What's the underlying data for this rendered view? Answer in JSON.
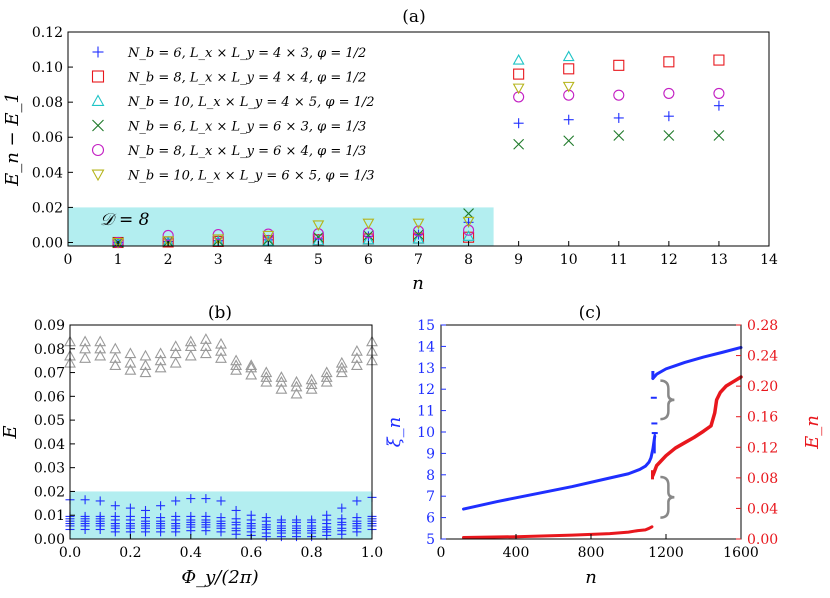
{
  "colors": {
    "blue": "#1f2fff",
    "red": "#e8171d",
    "cyan": "#1fc4c6",
    "green": "#1f7a2a",
    "magenta": "#c31fc3",
    "olive": "#b5b41a",
    "gray": "#9a9a9a",
    "band": "#b3eef0"
  },
  "chart_data": [
    {
      "id": "a",
      "title": "(a)",
      "type": "scatter",
      "xlabel": "n",
      "ylabel": "E_n − E_1",
      "xlim": [
        0,
        14
      ],
      "ylim": [
        -0.002,
        0.12
      ],
      "xticks": [
        "0",
        "1",
        "2",
        "3",
        "4",
        "5",
        "6",
        "7",
        "8",
        "9",
        "10",
        "11",
        "12",
        "13",
        "14"
      ],
      "yticks": [
        "0.00",
        "0.02",
        "0.04",
        "0.06",
        "0.08",
        "0.10",
        "0.12"
      ],
      "band": {
        "x": [
          0,
          8.5
        ],
        "y": [
          -0.002,
          0.02
        ],
        "label": "𝒟 = 8"
      },
      "series": [
        {
          "name": "N_b = 6, L_x × L_y = 4 × 3, φ = 1/2",
          "marker": "plus",
          "color": "blue",
          "x": [
            1,
            2,
            3,
            4,
            5,
            6,
            7,
            8,
            9,
            10,
            11,
            12,
            13
          ],
          "y": [
            0.0,
            0.0005,
            0.001,
            0.0015,
            0.002,
            0.0035,
            0.0045,
            0.0115,
            0.068,
            0.07,
            0.071,
            0.072,
            0.078
          ]
        },
        {
          "name": "N_b = 8, L_x × L_y = 4 × 4, φ = 1/2",
          "marker": "square",
          "color": "red",
          "x": [
            1,
            2,
            3,
            4,
            5,
            6,
            7,
            8,
            9,
            10,
            11,
            12,
            13
          ],
          "y": [
            0.0,
            0.0003,
            0.0006,
            0.001,
            0.0015,
            0.002,
            0.0025,
            0.003,
            0.096,
            0.099,
            0.101,
            0.103,
            0.104
          ]
        },
        {
          "name": "N_b = 10, L_x × L_y = 4 × 5, φ = 1/2",
          "marker": "triangle",
          "color": "cyan",
          "x": [
            1,
            2,
            3,
            4,
            5,
            6,
            7,
            8,
            9,
            10
          ],
          "y": [
            0.0,
            0.0003,
            0.0005,
            0.0008,
            0.001,
            0.0015,
            0.002,
            0.0035,
            0.104,
            0.106
          ]
        },
        {
          "name": "N_b = 6, L_x × L_y = 6 × 3, φ = 1/3",
          "marker": "cross",
          "color": "green",
          "x": [
            1,
            2,
            3,
            4,
            5,
            6,
            7,
            8,
            9,
            10,
            11,
            12,
            13
          ],
          "y": [
            0.0,
            0.0005,
            0.001,
            0.0015,
            0.003,
            0.004,
            0.0045,
            0.0165,
            0.056,
            0.058,
            0.061,
            0.061,
            0.061
          ]
        },
        {
          "name": "N_b = 8, L_x × L_y = 6 × 4, φ = 1/3",
          "marker": "circle",
          "color": "magenta",
          "x": [
            1,
            2,
            3,
            4,
            5,
            6,
            7,
            8,
            9,
            10,
            11,
            12,
            13
          ],
          "y": [
            0.0,
            0.004,
            0.0045,
            0.0048,
            0.005,
            0.0055,
            0.0065,
            0.007,
            0.083,
            0.084,
            0.084,
            0.085,
            0.085
          ]
        },
        {
          "name": "N_b = 10, L_x × L_y = 6 × 5, φ = 1/3",
          "marker": "tridown",
          "color": "olive",
          "x": [
            1,
            2,
            3,
            4,
            5,
            6,
            7,
            8,
            9,
            10
          ],
          "y": [
            0.0,
            0.001,
            0.002,
            0.004,
            0.01,
            0.011,
            0.011,
            0.012,
            0.088,
            0.089
          ]
        }
      ]
    },
    {
      "id": "b",
      "title": "(b)",
      "type": "scatter",
      "xlabel": "Φ_y/(2π)",
      "ylabel": "E",
      "xlim": [
        0,
        1
      ],
      "ylim": [
        0,
        0.09
      ],
      "xticks": [
        "0.0",
        "0.2",
        "0.4",
        "0.6",
        "0.8",
        "1.0"
      ],
      "yticks": [
        "0.00",
        "0.01",
        "0.02",
        "0.03",
        "0.04",
        "0.05",
        "0.06",
        "0.07",
        "0.08",
        "0.09"
      ],
      "band": {
        "x": [
          0,
          1
        ],
        "y": [
          0,
          0.02
        ]
      },
      "x": [
        0.0,
        0.05,
        0.1,
        0.15,
        0.2,
        0.25,
        0.3,
        0.35,
        0.4,
        0.45,
        0.5,
        0.55,
        0.6,
        0.65,
        0.7,
        0.75,
        0.8,
        0.85,
        0.9,
        0.95,
        1.0
      ],
      "low_series": {
        "marker": "plus",
        "color": "blue",
        "values": [
          [
            0.004,
            0.0055,
            0.0065,
            0.0075,
            0.0085,
            0.0095,
            0.0165
          ],
          [
            0.004,
            0.0055,
            0.0065,
            0.0075,
            0.0085,
            0.0095,
            0.0165
          ],
          [
            0.004,
            0.0055,
            0.0065,
            0.0075,
            0.0085,
            0.0095,
            0.016
          ],
          [
            0.003,
            0.0045,
            0.0055,
            0.0065,
            0.008,
            0.0095,
            0.014
          ],
          [
            0.003,
            0.0045,
            0.0055,
            0.0065,
            0.008,
            0.0095,
            0.013
          ],
          [
            0.003,
            0.0045,
            0.0055,
            0.0065,
            0.0075,
            0.009,
            0.012
          ],
          [
            0.003,
            0.0045,
            0.0055,
            0.0065,
            0.0075,
            0.009,
            0.014
          ],
          [
            0.003,
            0.0045,
            0.0055,
            0.0065,
            0.008,
            0.0095,
            0.016
          ],
          [
            0.0035,
            0.005,
            0.006,
            0.007,
            0.008,
            0.0095,
            0.017
          ],
          [
            0.0035,
            0.005,
            0.006,
            0.007,
            0.008,
            0.0095,
            0.017
          ],
          [
            0.003,
            0.0045,
            0.0055,
            0.0065,
            0.0075,
            0.009,
            0.016
          ],
          [
            0.002,
            0.0035,
            0.0045,
            0.006,
            0.007,
            0.0085,
            0.012
          ],
          [
            0.0015,
            0.003,
            0.0045,
            0.0055,
            0.0065,
            0.008,
            0.01
          ],
          [
            0.001,
            0.0025,
            0.004,
            0.005,
            0.006,
            0.0075,
            0.009
          ],
          [
            0.001,
            0.0025,
            0.0035,
            0.0045,
            0.0055,
            0.007,
            0.008
          ],
          [
            0.001,
            0.0025,
            0.0035,
            0.0045,
            0.0055,
            0.007,
            0.008
          ],
          [
            0.001,
            0.0025,
            0.0035,
            0.0045,
            0.0055,
            0.007,
            0.008
          ],
          [
            0.0015,
            0.003,
            0.004,
            0.005,
            0.0065,
            0.008,
            0.01
          ],
          [
            0.002,
            0.0035,
            0.0045,
            0.006,
            0.007,
            0.0085,
            0.013
          ],
          [
            0.003,
            0.0045,
            0.0055,
            0.0065,
            0.0075,
            0.009,
            0.016
          ],
          [
            0.004,
            0.0055,
            0.0065,
            0.0075,
            0.0085,
            0.0095,
            0.0175
          ]
        ]
      },
      "high_series": {
        "marker": "triangle",
        "color": "gray",
        "values": [
          [
            0.074,
            0.077,
            0.083
          ],
          [
            0.076,
            0.08,
            0.083
          ],
          [
            0.077,
            0.08,
            0.083
          ],
          [
            0.073,
            0.076,
            0.08
          ],
          [
            0.071,
            0.074,
            0.078
          ],
          [
            0.07,
            0.073,
            0.077
          ],
          [
            0.072,
            0.075,
            0.078
          ],
          [
            0.074,
            0.078,
            0.081
          ],
          [
            0.077,
            0.081,
            0.083
          ],
          [
            0.078,
            0.081,
            0.084
          ],
          [
            0.076,
            0.079,
            0.082
          ],
          [
            0.071,
            0.073,
            0.075
          ],
          [
            0.069,
            0.072,
            0.073
          ],
          [
            0.066,
            0.068,
            0.07
          ],
          [
            0.063,
            0.066,
            0.068
          ],
          [
            0.061,
            0.064,
            0.066
          ],
          [
            0.063,
            0.065,
            0.067
          ],
          [
            0.066,
            0.068,
            0.07
          ],
          [
            0.07,
            0.072,
            0.074
          ],
          [
            0.073,
            0.076,
            0.079
          ],
          [
            0.075,
            0.079,
            0.083
          ]
        ]
      }
    },
    {
      "id": "c",
      "title": "(c)",
      "type": "line",
      "xlabel": "n",
      "ylabel_left": "ξ_n",
      "ylabel_right": "E_n",
      "xlim": [
        0,
        1600
      ],
      "ylim_left": [
        5,
        15
      ],
      "ylim_right": [
        0,
        0.28
      ],
      "xticks": [
        "0",
        "400",
        "800",
        "1200",
        "1600"
      ],
      "yticks_left": [
        "5",
        "6",
        "7",
        "8",
        "9",
        "10",
        "11",
        "12",
        "13",
        "14",
        "15"
      ],
      "yticks_right": [
        "0.00",
        "0.04",
        "0.08",
        "0.12",
        "0.16",
        "0.20",
        "0.24",
        "0.28"
      ],
      "xi_series": {
        "name": "ξ_n",
        "color": "blue",
        "axis": "left",
        "x": [
          120,
          300,
          500,
          700,
          900,
          1000,
          1060,
          1090,
          1110,
          1120,
          1130,
          1140
        ],
        "y": [
          6.4,
          6.75,
          7.1,
          7.45,
          7.85,
          8.05,
          8.25,
          8.4,
          8.6,
          8.8,
          9.2,
          9.8
        ],
        "upper_x": [
          1130,
          1150,
          1200,
          1250,
          1300,
          1400,
          1500,
          1600
        ],
        "upper_y": [
          12.5,
          12.7,
          12.95,
          13.1,
          13.25,
          13.5,
          13.72,
          13.95
        ],
        "isolated": [
          [
            1135,
            11.6
          ],
          [
            1138,
            10.4
          ],
          [
            1140,
            9.95
          ]
        ]
      },
      "e_series": {
        "name": "E_n",
        "color": "red",
        "axis": "right",
        "x": [
          120,
          400,
          700,
          900,
          1000,
          1050,
          1090,
          1110,
          1125
        ],
        "y": [
          0.002,
          0.003,
          0.005,
          0.007,
          0.009,
          0.011,
          0.012,
          0.014,
          0.016
        ],
        "upper_x": [
          1130,
          1150,
          1200,
          1250,
          1300,
          1350,
          1400,
          1440,
          1460,
          1470,
          1490,
          1520,
          1560,
          1600
        ],
        "upper_y": [
          0.083,
          0.096,
          0.109,
          0.119,
          0.126,
          0.133,
          0.141,
          0.148,
          0.165,
          0.182,
          0.192,
          0.2,
          0.206,
          0.212
        ]
      },
      "braces": [
        {
          "axis": "left",
          "x": 1170,
          "y": [
            10.6,
            12.4
          ]
        },
        {
          "axis": "left",
          "x": 1170,
          "y": [
            6.0,
            7.9
          ]
        }
      ]
    }
  ]
}
